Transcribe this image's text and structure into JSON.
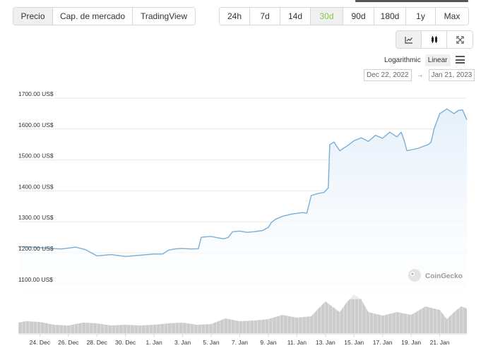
{
  "tabs": {
    "metric": [
      {
        "label": "Precio",
        "active": true
      },
      {
        "label": "Cap. de mercado",
        "active": false
      },
      {
        "label": "TradingView",
        "active": false
      }
    ],
    "range": [
      {
        "label": "24h",
        "active": false
      },
      {
        "label": "7d",
        "active": false
      },
      {
        "label": "14d",
        "active": false
      },
      {
        "label": "30d",
        "active": true
      },
      {
        "label": "90d",
        "active": false
      },
      {
        "label": "180d",
        "active": false
      },
      {
        "label": "1y",
        "active": false
      },
      {
        "label": "Max",
        "active": false
      }
    ],
    "chart_type": [
      {
        "icon": "line-chart-icon",
        "active": true
      },
      {
        "icon": "candlestick-icon",
        "active": false
      },
      {
        "icon": "fullscreen-icon",
        "active": false
      }
    ]
  },
  "scale": {
    "log_label": "Logarithmic",
    "linear_label": "Linear",
    "selected": "Linear"
  },
  "date_range": {
    "from": "Dec 22, 2022",
    "arrow": "→",
    "to": "Jan 21, 2023"
  },
  "watermark": "CoinGecko",
  "colors": {
    "line": "#7aaed6",
    "fill": "#e6f0fa",
    "volume": "#cccccc",
    "active_green": "#8dc63f"
  },
  "chart_data": {
    "type": "line",
    "title": "",
    "xlabel": "",
    "ylabel": "",
    "ylim": [
      1050,
      1720
    ],
    "grid": true,
    "y_ticks": [
      {
        "value": 1700,
        "label": "1700.00 US$"
      },
      {
        "value": 1600,
        "label": "1600.00 US$"
      },
      {
        "value": 1500,
        "label": "1500.00 US$"
      },
      {
        "value": 1400,
        "label": "1400.00 US$"
      },
      {
        "value": 1300,
        "label": "1300.00 US$"
      },
      {
        "value": 1200,
        "label": "1200.00 US$"
      },
      {
        "value": 1100,
        "label": "1100.00 US$"
      }
    ],
    "x_range_days": [
      -1.5,
      29.9
    ],
    "x_ticks": [
      {
        "day": 0,
        "label": "24. Dec"
      },
      {
        "day": 2,
        "label": "26. Dec"
      },
      {
        "day": 4,
        "label": "28. Dec"
      },
      {
        "day": 6,
        "label": "30. Dec"
      },
      {
        "day": 8,
        "label": "1. Jan"
      },
      {
        "day": 10,
        "label": "3. Jan"
      },
      {
        "day": 12,
        "label": "5. Jan"
      },
      {
        "day": 14,
        "label": "7. Jan"
      },
      {
        "day": 16,
        "label": "9. Jan"
      },
      {
        "day": 18,
        "label": "11. Jan"
      },
      {
        "day": 20,
        "label": "13. Jan"
      },
      {
        "day": 22,
        "label": "15. Jan"
      },
      {
        "day": 24,
        "label": "17. Jan"
      },
      {
        "day": 26,
        "label": "19. Jan"
      },
      {
        "day": 28,
        "label": "21. Jan"
      }
    ],
    "series": [
      {
        "x": [
          -1.5,
          -0.5,
          0.5,
          1.5,
          2.5,
          3.2,
          3.6,
          4.0,
          5.0,
          6.0,
          7.0,
          8.0,
          8.6,
          9.0,
          9.4,
          10.0,
          10.6,
          11.1,
          11.3,
          12.0,
          12.5,
          12.9,
          13.2,
          13.5,
          14.0,
          14.5,
          15.0,
          15.6,
          16.0,
          16.2,
          16.5,
          17.0,
          17.6,
          18.4,
          18.7,
          19.0,
          19.5,
          19.9,
          20.2,
          20.3,
          20.6,
          21.0,
          21.5,
          22.0,
          22.5,
          23.0,
          23.5,
          24.0,
          24.5,
          25.0,
          25.3,
          25.5,
          25.7,
          26.5,
          26.9,
          27.2,
          27.4,
          27.6,
          28.0,
          28.5,
          29.0,
          29.3,
          29.6,
          29.9
        ],
        "y": [
          1220,
          1218,
          1215,
          1212,
          1218,
          1210,
          1200,
          1190,
          1194,
          1188,
          1192,
          1196,
          1196,
          1208,
          1212,
          1214,
          1212,
          1213,
          1250,
          1253,
          1248,
          1245,
          1250,
          1268,
          1270,
          1266,
          1268,
          1272,
          1282,
          1297,
          1308,
          1318,
          1325,
          1330,
          1328,
          1385,
          1392,
          1395,
          1410,
          1550,
          1558,
          1530,
          1545,
          1562,
          1572,
          1560,
          1580,
          1570,
          1590,
          1575,
          1590,
          1565,
          1530,
          1538,
          1545,
          1550,
          1558,
          1600,
          1650,
          1665,
          1650,
          1660,
          1662,
          1630
        ]
      }
    ],
    "volume": {
      "x": [
        -1.5,
        -1,
        0,
        1,
        2,
        3,
        4,
        5,
        6,
        7,
        8,
        9,
        10,
        11,
        12,
        13,
        14,
        15,
        16,
        17,
        18,
        19,
        19.5,
        20,
        21,
        21.5,
        22,
        22.5,
        23,
        24,
        25,
        26,
        27,
        28,
        28.5,
        29,
        29.5,
        29.9
      ],
      "h": [
        15,
        17,
        16,
        12,
        11,
        15,
        14,
        11,
        12,
        11,
        12,
        14,
        15,
        12,
        13,
        21,
        17,
        18,
        20,
        26,
        22,
        24,
        35,
        45,
        30,
        44,
        55,
        48,
        30,
        25,
        30,
        26,
        38,
        33,
        20,
        30,
        38,
        35
      ]
    }
  }
}
